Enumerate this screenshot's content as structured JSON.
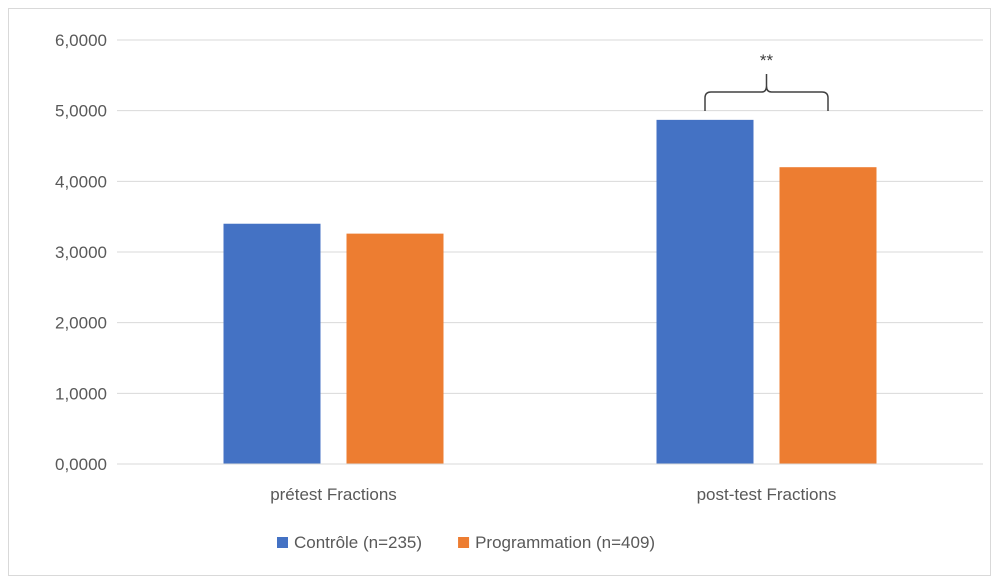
{
  "chart_data": {
    "type": "bar",
    "title": "",
    "xlabel": "",
    "ylabel": "",
    "categories": [
      "prétest Fractions",
      "post-test Fractions"
    ],
    "series": [
      {
        "name": "Contrôle (n=235)",
        "color": "#4472c4",
        "values": [
          3.4,
          4.87
        ]
      },
      {
        "name": "Programmation (n=409)",
        "color": "#ed7d31",
        "values": [
          3.26,
          4.2
        ]
      }
    ],
    "ylim": [
      0,
      6
    ],
    "yticks": [
      "0,0000",
      "1,0000",
      "2,0000",
      "3,0000",
      "4,0000",
      "5,0000",
      "6,0000"
    ],
    "grid": true,
    "legend_position": "bottom",
    "annotation": {
      "text": "**",
      "category": "post-test Fractions"
    }
  }
}
